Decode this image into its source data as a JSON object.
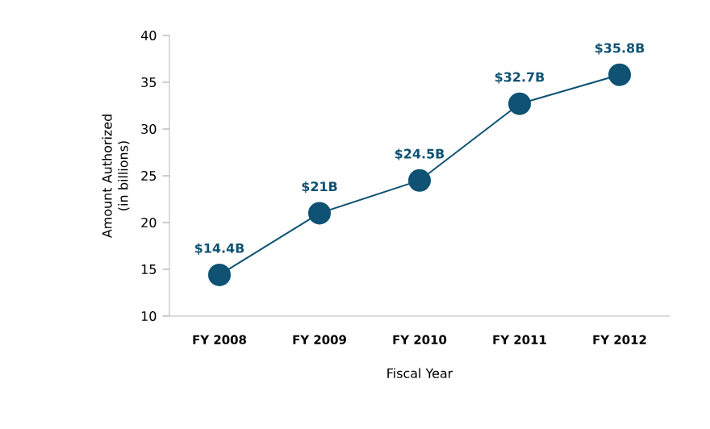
{
  "chart_data": {
    "type": "line",
    "xlabel": "Fiscal Year",
    "ylabel": "Amount Authorized (in billions)",
    "categories": [
      "FY 2008",
      "FY 2009",
      "FY 2010",
      "FY 2011",
      "FY 2012"
    ],
    "values": [
      14.4,
      21,
      24.5,
      32.7,
      35.8
    ],
    "value_labels": [
      "$14.4B",
      "$21B",
      "$24.5B",
      "$32.7B",
      "$35.8B"
    ],
    "color": "#0f5273",
    "marker": "circle",
    "grid": false,
    "ylim": [
      10,
      40
    ],
    "yticks": [
      10,
      15,
      20,
      25,
      30,
      35,
      40
    ]
  }
}
